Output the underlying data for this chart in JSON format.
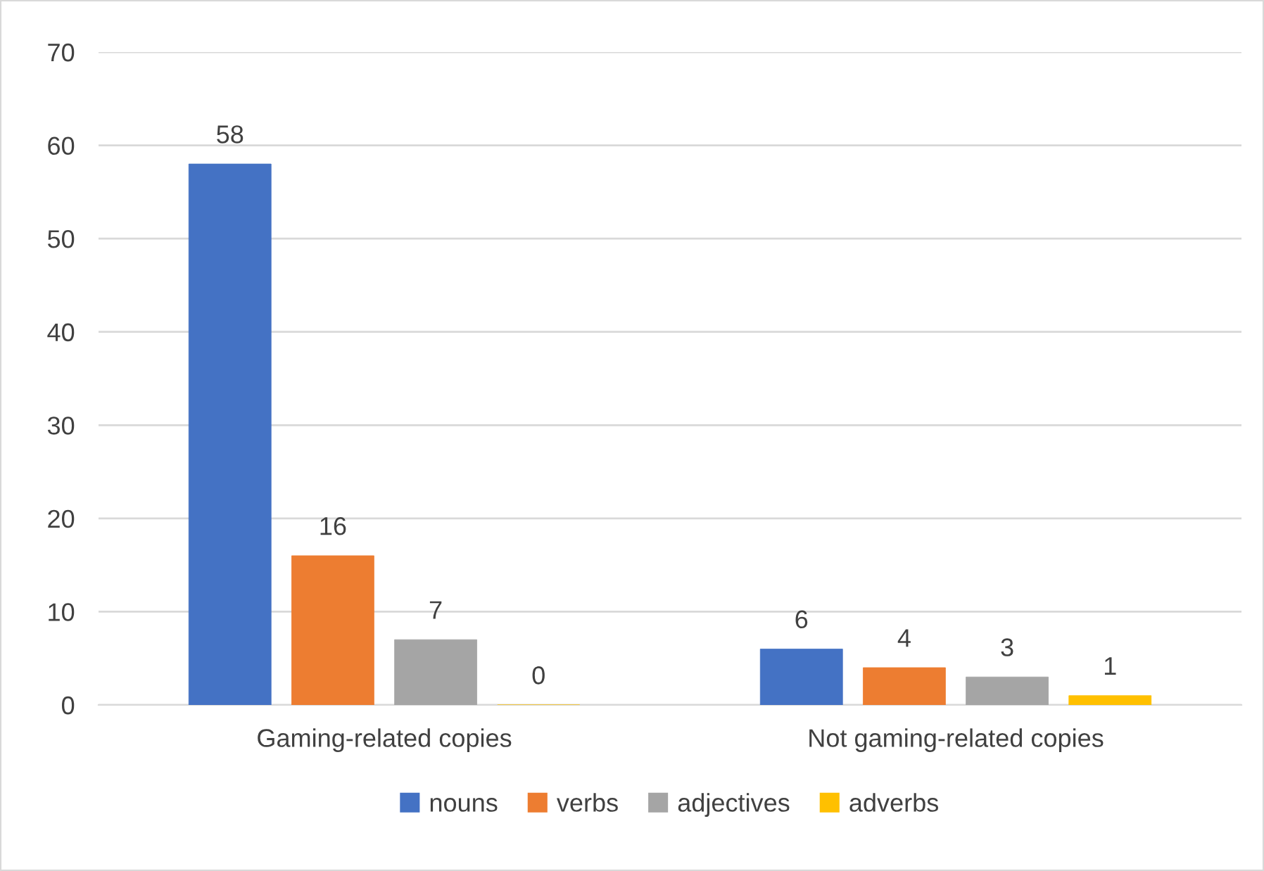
{
  "chart_data": {
    "type": "bar",
    "categories": [
      "Gaming-related copies",
      "Not gaming-related copies"
    ],
    "series": [
      {
        "name": "nouns",
        "color": "#4472c4",
        "values": [
          58,
          6
        ]
      },
      {
        "name": "verbs",
        "color": "#ed7d31",
        "values": [
          16,
          4
        ]
      },
      {
        "name": "adjectives",
        "color": "#a5a5a5",
        "values": [
          7,
          3
        ]
      },
      {
        "name": "adverbs",
        "color": "#ffc000",
        "values": [
          0,
          1
        ]
      }
    ],
    "ylim": [
      0,
      70
    ],
    "yticks": [
      0,
      10,
      20,
      30,
      40,
      50,
      60,
      70
    ],
    "grid": "y",
    "legend": "bottom",
    "data_labels": true
  }
}
